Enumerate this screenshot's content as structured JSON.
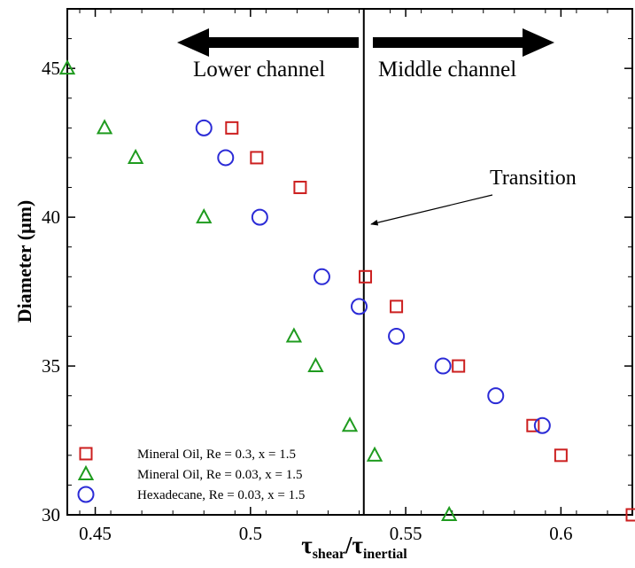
{
  "chart_data": {
    "type": "scatter",
    "title": "",
    "xlabel": {
      "main": "τ",
      "sub1": "shear",
      "sep": "/τ",
      "sub2": "inertial"
    },
    "ylabel": "Diameter (μm)",
    "xlim": [
      0.441,
      0.623
    ],
    "ylim": [
      30,
      47
    ],
    "x_ticks": [
      {
        "value": 0.45,
        "label": "0.45"
      },
      {
        "value": 0.5,
        "label": "0.5"
      },
      {
        "value": 0.55,
        "label": "0.55"
      },
      {
        "value": 0.6,
        "label": "0.6"
      }
    ],
    "y_ticks": [
      {
        "value": 30,
        "label": "30"
      },
      {
        "value": 35,
        "label": "35"
      },
      {
        "value": 40,
        "label": "40"
      },
      {
        "value": 45,
        "label": "45"
      }
    ],
    "grid": false,
    "legend_position": "bottom-left",
    "series": [
      {
        "name": "Mineral Oil, Re = 0.3, x = 1.5",
        "marker": "square",
        "color": "#cc1f1f",
        "points": [
          [
            0.494,
            43
          ],
          [
            0.502,
            42
          ],
          [
            0.516,
            41
          ],
          [
            0.537,
            38
          ],
          [
            0.547,
            37
          ],
          [
            0.567,
            35
          ],
          [
            0.591,
            33
          ],
          [
            0.6,
            32
          ],
          [
            0.623,
            30
          ]
        ]
      },
      {
        "name": "Mineral Oil, Re = 0.03, x = 1.5",
        "marker": "triangle",
        "color": "#1f9b1f",
        "points": [
          [
            0.441,
            45
          ],
          [
            0.453,
            43
          ],
          [
            0.463,
            42
          ],
          [
            0.485,
            40
          ],
          [
            0.514,
            36
          ],
          [
            0.521,
            35
          ],
          [
            0.532,
            33
          ],
          [
            0.54,
            32
          ],
          [
            0.564,
            30
          ]
        ]
      },
      {
        "name": "Hexadecane, Re = 0.03, x = 1.5",
        "marker": "circle",
        "color": "#2b2bd6",
        "points": [
          [
            0.485,
            43
          ],
          [
            0.492,
            42
          ],
          [
            0.503,
            40
          ],
          [
            0.523,
            38
          ],
          [
            0.535,
            37
          ],
          [
            0.547,
            36
          ],
          [
            0.562,
            35
          ],
          [
            0.579,
            34
          ],
          [
            0.594,
            33
          ]
        ]
      }
    ],
    "divider_x": 0.5365,
    "annotations": {
      "left_region": "Lower channel",
      "right_region": "Middle channel",
      "transition": "Transition"
    }
  }
}
